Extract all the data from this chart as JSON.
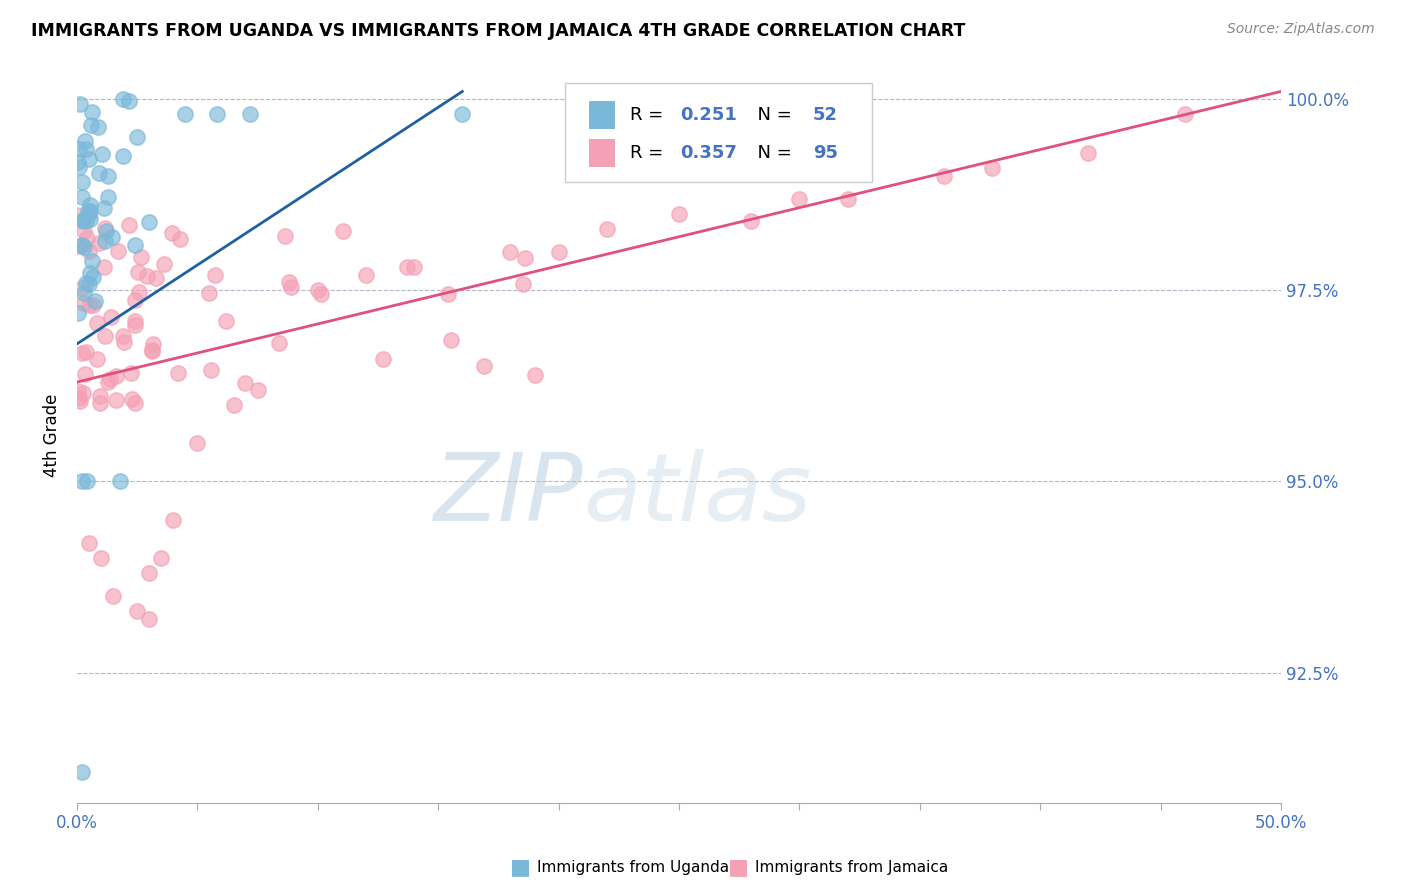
{
  "title": "IMMIGRANTS FROM UGANDA VS IMMIGRANTS FROM JAMAICA 4TH GRADE CORRELATION CHART",
  "source": "Source: ZipAtlas.com",
  "ylabel": "4th Grade",
  "xlim": [
    0.0,
    0.5
  ],
  "ylim": [
    0.908,
    1.004
  ],
  "xtick_positions": [
    0.0,
    0.05,
    0.1,
    0.15,
    0.2,
    0.25,
    0.3,
    0.35,
    0.4,
    0.45,
    0.5
  ],
  "xticklabels": [
    "0.0%",
    "",
    "",
    "",
    "",
    "",
    "",
    "",
    "",
    "",
    "50.0%"
  ],
  "ytick_positions": [
    0.925,
    0.95,
    0.975,
    1.0
  ],
  "yticklabels": [
    "92.5%",
    "95.0%",
    "97.5%",
    "100.0%"
  ],
  "uganda_color": "#7ab8d9",
  "jamaica_color": "#f4a0b5",
  "trendline_uganda_color": "#2060a0",
  "trendline_jamaica_color": "#e05080",
  "tick_color": "#4472c4",
  "watermark_color": "#c8dff0",
  "n_uganda": 52,
  "n_jamaica": 95,
  "R_uganda": 0.251,
  "R_jamaica": 0.357
}
